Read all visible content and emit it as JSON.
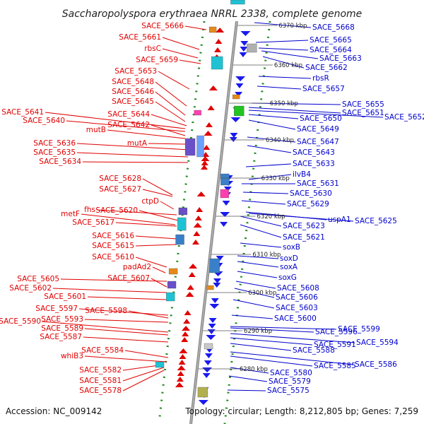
{
  "title": "Saccharopolyspora erythraea NRRL 2338, complete genome",
  "footer": {
    "accession": "Accession: NC_009142",
    "topology": "Topology: circular; Length: 8,212,805 bp; Genes: 7,259"
  },
  "colors": {
    "left_labels": "#e00000",
    "right_labels": "#0000cc",
    "forward_strand": "#e00000",
    "reverse_strand": "#1a1aee",
    "axis": "#777777",
    "tick_dots": "#1e8a1e"
  },
  "kbp_ticks": [
    {
      "label": "6370 kbp"
    },
    {
      "label": "6360 kbp"
    },
    {
      "label": "6350 kbp"
    },
    {
      "label": "6340 kbp"
    },
    {
      "label": "6330 kbp"
    },
    {
      "label": "6320 kbp"
    },
    {
      "label": "6310 kbp"
    },
    {
      "label": "6300 kbp"
    },
    {
      "label": "6290 kbp"
    },
    {
      "label": "6280 kbp"
    }
  ],
  "left_genes": [
    {
      "name": "SACE_5666"
    },
    {
      "name": "SACE_5661"
    },
    {
      "name": "rbsC"
    },
    {
      "name": "SACE_5659"
    },
    {
      "name": "SACE_5653"
    },
    {
      "name": "SACE_5648"
    },
    {
      "name": "SACE_5646"
    },
    {
      "name": "SACE_5645"
    },
    {
      "name": "SACE_5641"
    },
    {
      "name": "SACE_5644"
    },
    {
      "name": "SACE_5640"
    },
    {
      "name": "SACE_5642"
    },
    {
      "name": "mutB"
    },
    {
      "name": "SACE_5636"
    },
    {
      "name": "mutA"
    },
    {
      "name": "SACE_5635"
    },
    {
      "name": "SACE_5634"
    },
    {
      "name": "SACE_5628"
    },
    {
      "name": "SACE_5627"
    },
    {
      "name": "ctpD"
    },
    {
      "name": "fhs"
    },
    {
      "name": "SACE_5620"
    },
    {
      "name": "metF"
    },
    {
      "name": "SACE_5617"
    },
    {
      "name": "SACE_5616"
    },
    {
      "name": "SACE_5615"
    },
    {
      "name": "SACE_5610"
    },
    {
      "name": "padAd2"
    },
    {
      "name": "SACE_5605"
    },
    {
      "name": "SACE_5607"
    },
    {
      "name": "SACE_5602"
    },
    {
      "name": "SACE_5601"
    },
    {
      "name": "SACE_5597"
    },
    {
      "name": "SACE_5598"
    },
    {
      "name": "SACE_5593"
    },
    {
      "name": "SACE_5590"
    },
    {
      "name": "SACE_5589"
    },
    {
      "name": "SACE_5587"
    },
    {
      "name": "SACE_5584"
    },
    {
      "name": "whiB3"
    },
    {
      "name": "SACE_5582"
    },
    {
      "name": "SACE_5581"
    },
    {
      "name": "SACE_5578"
    }
  ],
  "right_genes": [
    {
      "name": "SACE_5668"
    },
    {
      "name": "SACE_5665"
    },
    {
      "name": "SACE_5664"
    },
    {
      "name": "SACE_5663"
    },
    {
      "name": "SACE_5662"
    },
    {
      "name": "rbsR"
    },
    {
      "name": "SACE_5657"
    },
    {
      "name": "SACE_5655"
    },
    {
      "name": "SACE_5651"
    },
    {
      "name": "SACE_5652"
    },
    {
      "name": "SACE_5650"
    },
    {
      "name": "SACE_5649"
    },
    {
      "name": "SACE_5647"
    },
    {
      "name": "SACE_5643"
    },
    {
      "name": "SACE_5633"
    },
    {
      "name": "ilvB4"
    },
    {
      "name": "SACE_5631"
    },
    {
      "name": "SACE_5630"
    },
    {
      "name": "SACE_5629"
    },
    {
      "name": "uspA1"
    },
    {
      "name": "SACE_5625"
    },
    {
      "name": "SACE_5623"
    },
    {
      "name": "SACE_5621"
    },
    {
      "name": "soxB"
    },
    {
      "name": "soxD"
    },
    {
      "name": "soxA"
    },
    {
      "name": "soxG"
    },
    {
      "name": "SACE_5608"
    },
    {
      "name": "SACE_5606"
    },
    {
      "name": "SACE_5603"
    },
    {
      "name": "SACE_5600"
    },
    {
      "name": "SACE_5599"
    },
    {
      "name": "SACE_5596"
    },
    {
      "name": "SACE_5594"
    },
    {
      "name": "SACE_5591"
    },
    {
      "name": "SACE_5588"
    },
    {
      "name": "SACE_5586"
    },
    {
      "name": "SACE_5585"
    },
    {
      "name": "SACE_5580"
    },
    {
      "name": "SACE_5579"
    },
    {
      "name": "SACE_5575"
    }
  ]
}
